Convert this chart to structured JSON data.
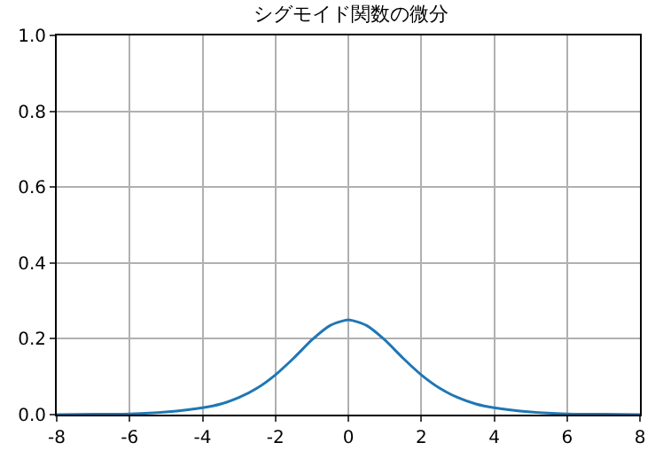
{
  "chart_data": {
    "type": "line",
    "title": "シグモイド関数の微分",
    "x": [
      -8,
      -7,
      -6,
      -5,
      -4,
      -3.5,
      -3,
      -2.5,
      -2,
      -1.5,
      -1,
      -0.5,
      0,
      0.5,
      1,
      1.5,
      2,
      2.5,
      3,
      3.5,
      4,
      5,
      6,
      7,
      8
    ],
    "series": [
      {
        "color": "#1f77b4",
        "values": [
          0.0,
          0.001,
          0.002,
          0.007,
          0.018,
          0.028,
          0.045,
          0.07,
          0.105,
          0.149,
          0.197,
          0.235,
          0.25,
          0.235,
          0.197,
          0.149,
          0.105,
          0.07,
          0.045,
          0.028,
          0.018,
          0.007,
          0.002,
          0.001,
          0.0
        ]
      }
    ],
    "xlim": [
      -8,
      8
    ],
    "xticks": [
      -8,
      -6,
      -4,
      -2,
      0,
      2,
      4,
      6,
      8
    ],
    "ylim": [
      0,
      1
    ],
    "yticks": [
      {
        "value": 0,
        "label": "0.0"
      },
      0.2,
      0.4,
      0.6,
      0.8,
      {
        "value": 1,
        "label": "1.0"
      }
    ],
    "grid": true,
    "marker": "none",
    "line_style": "solid"
  }
}
